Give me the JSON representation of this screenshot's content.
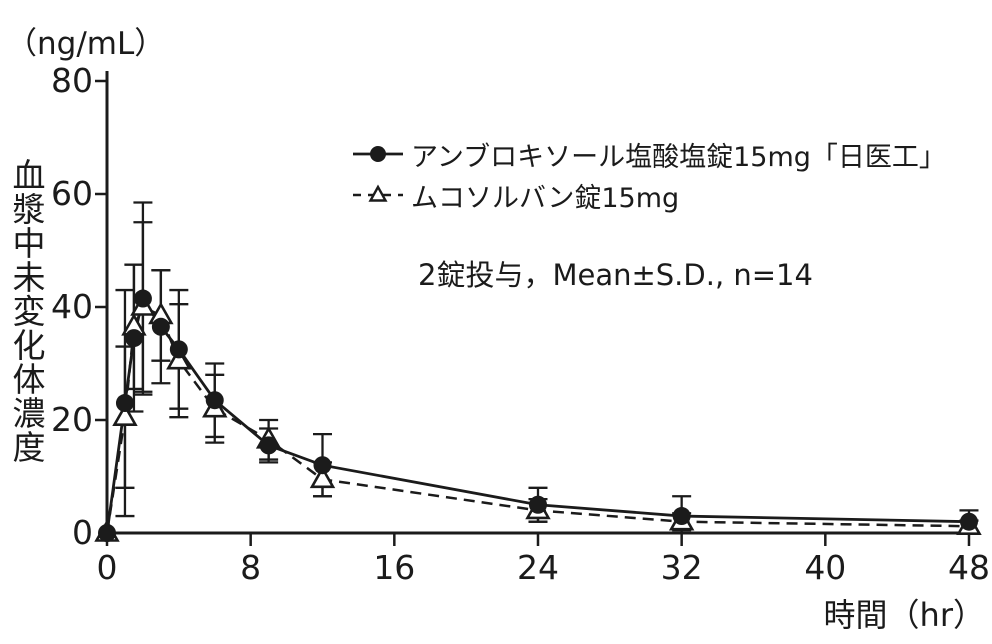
{
  "chart_data": {
    "type": "line",
    "y_unit": "（ng/mL）",
    "y_axis_title": "血漿中未変化体濃度",
    "x_label": "時間（hr）",
    "annotation": "2錠投与，Mean±S.D., n=14",
    "x_ticks": [
      0,
      8,
      16,
      24,
      32,
      40,
      48
    ],
    "y_ticks": [
      0,
      20,
      40,
      60,
      80
    ],
    "xlim": [
      0,
      48
    ],
    "ylim": [
      0,
      80
    ],
    "error_bars": "mean ± S.D.",
    "grid": false,
    "legend_position": "upper-center",
    "x": [
      0,
      1,
      1.5,
      2,
      3,
      4,
      6,
      9,
      12,
      24,
      32,
      48
    ],
    "series": [
      {
        "name": "アンブロキソール塩酸塩錠15mg「日医工」",
        "line": "solid",
        "marker": "filled-circle",
        "color": "#1b1b1b",
        "values": [
          0,
          23,
          34.5,
          41.5,
          36.5,
          32.5,
          23.5,
          15.5,
          12,
          5,
          3,
          2
        ],
        "sd": [
          0,
          20,
          13,
          17,
          10,
          10.5,
          6.5,
          3,
          5.5,
          3,
          3.5,
          2
        ]
      },
      {
        "name": "ムコソルバン錠15mg",
        "line": "dashed",
        "marker": "open-triangle",
        "color": "#1b1b1b",
        "values": [
          0,
          20.5,
          36.5,
          40,
          38.5,
          30.5,
          22,
          16.5,
          9.5,
          4,
          2,
          1.2
        ],
        "sd": [
          0,
          12.5,
          11,
          15,
          8,
          10,
          6,
          3.5,
          3,
          2,
          1.5,
          1
        ]
      }
    ]
  }
}
